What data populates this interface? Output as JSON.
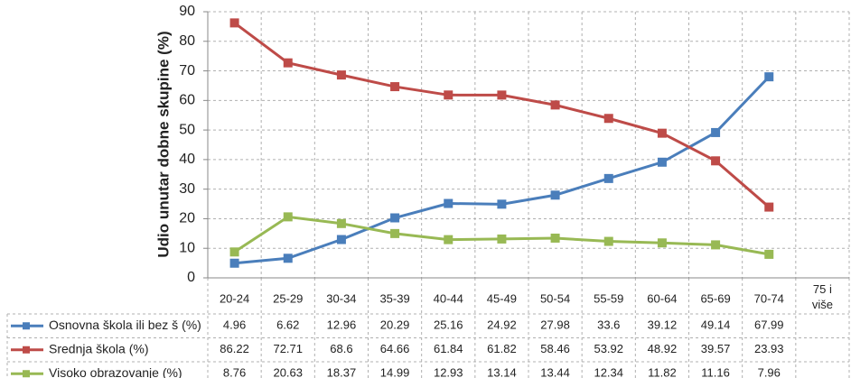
{
  "chart_data": {
    "type": "line",
    "y_label": "Udio unutar dobne skupine (%)",
    "categories": [
      "20-24",
      "25-29",
      "30-34",
      "35-39",
      "40-44",
      "45-49",
      "50-54",
      "55-59",
      "60-64",
      "65-69",
      "70-74",
      "75 i više"
    ],
    "series": [
      {
        "name": "Osnovna škola ili bez š (%)",
        "color": "#4a7ebb",
        "values": [
          4.96,
          6.62,
          12.96,
          20.29,
          25.16,
          24.92,
          27.98,
          33.6,
          39.12,
          49.14,
          67.99,
          null
        ]
      },
      {
        "name": "Srednja škola (%)",
        "color": "#be4b48",
        "values": [
          86.22,
          72.71,
          68.6,
          64.66,
          61.84,
          61.82,
          58.46,
          53.92,
          48.92,
          39.57,
          23.93,
          null
        ]
      },
      {
        "name": "Visoko obrazovanje (%)",
        "color": "#98b954",
        "values": [
          8.76,
          20.63,
          18.37,
          14.99,
          12.93,
          13.14,
          13.44,
          12.34,
          11.82,
          11.16,
          7.96,
          null
        ]
      }
    ],
    "ylim": [
      0,
      90
    ],
    "yticks": [
      0,
      10,
      20,
      30,
      40,
      50,
      60,
      70,
      80,
      90
    ],
    "grid": true
  }
}
